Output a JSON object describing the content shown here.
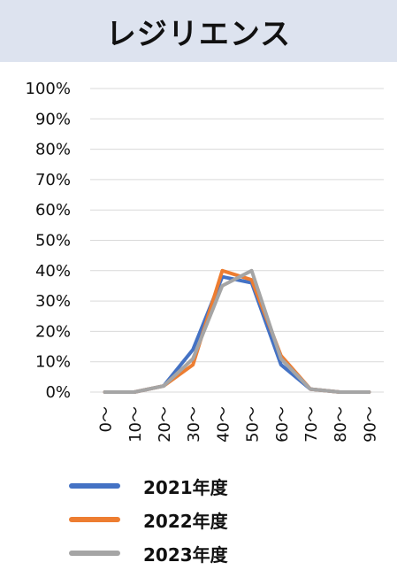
{
  "header": {
    "title": "レジリエンス"
  },
  "chart_data": {
    "type": "line",
    "title": "レジリエンス",
    "categories": [
      "0～",
      "10～",
      "20～",
      "30～",
      "40～",
      "50～",
      "60～",
      "70～",
      "80～",
      "90～"
    ],
    "y_ticks": [
      "0%",
      "10%",
      "20%",
      "30%",
      "40%",
      "50%",
      "60%",
      "70%",
      "80%",
      "90%",
      "100%"
    ],
    "ylim": [
      0,
      100
    ],
    "grid": true,
    "legend_position": "bottom",
    "series": [
      {
        "name": "2021年度",
        "color": "#4472c4",
        "values": [
          0,
          0,
          2,
          14,
          38,
          36,
          9,
          1,
          0,
          0
        ]
      },
      {
        "name": "2022年度",
        "color": "#ed7d31",
        "values": [
          0,
          0,
          2,
          9,
          40,
          37,
          12,
          1,
          0,
          0
        ]
      },
      {
        "name": "2023年度",
        "color": "#a5a5a5",
        "values": [
          0,
          0,
          2,
          11,
          35,
          40,
          11,
          1,
          0,
          0
        ]
      }
    ]
  }
}
